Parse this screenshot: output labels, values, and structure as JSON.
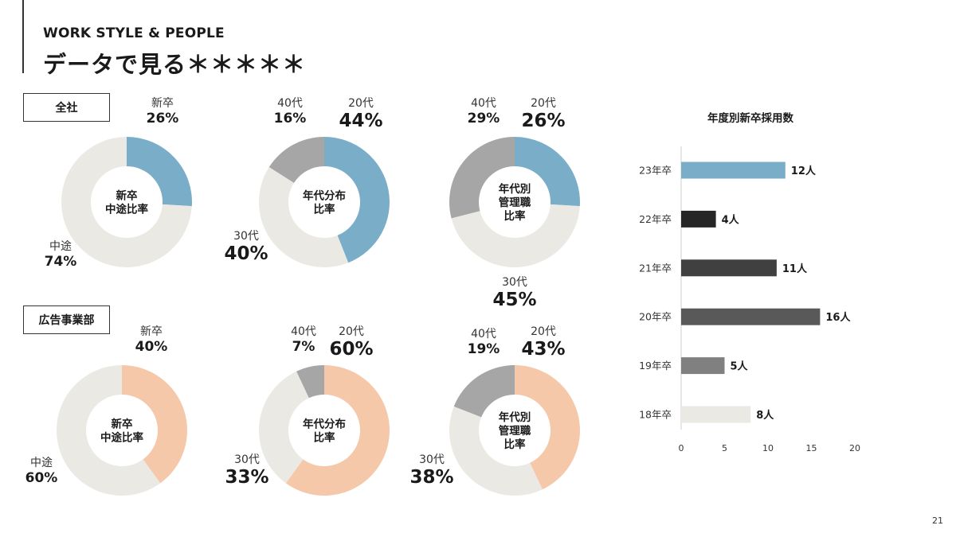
{
  "header": {
    "subtitle": "WORK STYLE & PEOPLE",
    "title": "データで見る＊＊＊＊＊"
  },
  "sections": {
    "company": "全社",
    "ad_dept": "広告事業部"
  },
  "labels": {
    "c_hire": {
      "shinsotsu": "新卒",
      "shinsotsu_v": "26%",
      "chuto": "中途",
      "chuto_v": "74%"
    },
    "c_age": {
      "a40": "40代",
      "a40_v": "16%",
      "a20": "20代",
      "a20_v": "44%",
      "a30": "30代",
      "a30_v": "40%"
    },
    "c_mgr": {
      "a40": "40代",
      "a40_v": "29%",
      "a20": "20代",
      "a20_v": "26%",
      "a30": "30代",
      "a30_v": "45%"
    },
    "d_hire": {
      "shinsotsu": "新卒",
      "shinsotsu_v": "40%",
      "chuto": "中途",
      "chuto_v": "60%"
    },
    "d_age": {
      "a40": "40代",
      "a40_v": "7%",
      "a20": "20代",
      "a20_v": "60%",
      "a30": "30代",
      "a30_v": "33%"
    },
    "d_mgr": {
      "a40": "40代",
      "a40_v": "19%",
      "a20": "20代",
      "a20_v": "43%",
      "a30": "30代",
      "a30_v": "38%"
    }
  },
  "page_number": "21",
  "chart_data": [
    {
      "type": "pie",
      "center_label": [
        "新卒",
        "中途比率"
      ],
      "categories": [
        "新卒",
        "中途"
      ],
      "values": [
        26,
        74
      ],
      "colors": [
        "#7aaec8",
        "#ebe9e4"
      ]
    },
    {
      "type": "pie",
      "center_label": [
        "年代分布",
        "比率"
      ],
      "categories": [
        "20代",
        "30代",
        "40代"
      ],
      "values": [
        44,
        40,
        16
      ],
      "colors": [
        "#7aaec8",
        "#ebe9e4",
        "#a6a6a6"
      ]
    },
    {
      "type": "pie",
      "center_label": [
        "年代別",
        "管理職",
        "比率"
      ],
      "categories": [
        "20代",
        "30代",
        "40代"
      ],
      "values": [
        26,
        45,
        29
      ],
      "colors": [
        "#7aaec8",
        "#ebe9e4",
        "#a6a6a6"
      ]
    },
    {
      "type": "pie",
      "center_label": [
        "新卒",
        "中途比率"
      ],
      "categories": [
        "新卒",
        "中途"
      ],
      "values": [
        40,
        60
      ],
      "colors": [
        "#f6c8aa",
        "#ebe9e4"
      ]
    },
    {
      "type": "pie",
      "center_label": [
        "年代分布",
        "比率"
      ],
      "categories": [
        "20代",
        "30代",
        "40代"
      ],
      "values": [
        60,
        33,
        7
      ],
      "colors": [
        "#f6c8aa",
        "#ebe9e4",
        "#a6a6a6"
      ]
    },
    {
      "type": "pie",
      "center_label": [
        "年代別",
        "管理職",
        "比率"
      ],
      "categories": [
        "20代",
        "30代",
        "40代"
      ],
      "values": [
        43,
        38,
        19
      ],
      "colors": [
        "#f6c8aa",
        "#ebe9e4",
        "#a6a6a6"
      ]
    },
    {
      "type": "bar",
      "orientation": "horizontal",
      "title": "年度別新卒採用数",
      "categories": [
        "23年卒",
        "22年卒",
        "21年卒",
        "20年卒",
        "19年卒",
        "18年卒"
      ],
      "values": [
        12,
        4,
        11,
        16,
        5,
        8
      ],
      "value_labels": [
        "12人",
        "4人",
        "11人",
        "16人",
        "5人",
        "8人"
      ],
      "colors": [
        "#7aaec8",
        "#262626",
        "#404040",
        "#595959",
        "#808080",
        "#ebe9e4"
      ],
      "xlim": [
        0,
        20
      ],
      "xticks": [
        0,
        5,
        10,
        15,
        20
      ],
      "grid": false
    }
  ]
}
